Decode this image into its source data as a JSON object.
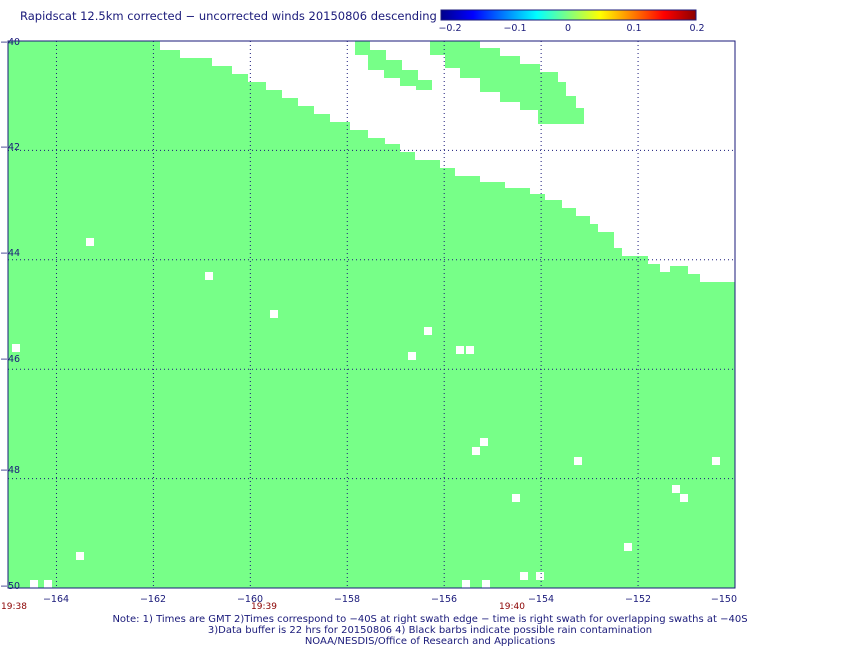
{
  "title": "Rapidscat 12.5km corrected − uncorrected winds 20150806 descending",
  "colorbar": {
    "colors": [
      "#00008b",
      "#0000ff",
      "#0080ff",
      "#00ffff",
      "#80ff80",
      "#ffff00",
      "#ff8000",
      "#ff0000",
      "#8b0000"
    ],
    "tick_labels": [
      "−0.2",
      "−0.1",
      "0",
      "0.1",
      "0.2"
    ],
    "range": [
      -0.2,
      0.2
    ]
  },
  "map": {
    "lon_range": [
      -165,
      -150
    ],
    "lat_range": [
      -40,
      -50
    ],
    "lon_ticks": [
      -164,
      -162,
      -160,
      -158,
      -156,
      -154,
      -152,
      -150
    ],
    "lon_labels": [
      "−164",
      "−162",
      "−160",
      "−158",
      "−156",
      "−154",
      "−152",
      "−150"
    ],
    "lat_ticks": [
      -40,
      -42,
      -44,
      -46,
      -48,
      -50
    ],
    "lat_labels": [
      "−40",
      "−42",
      "−44",
      "−46",
      "−48",
      "−50"
    ],
    "times": [
      "19:38",
      "19:39",
      "19:40"
    ],
    "data_color": "#77ff88",
    "grid_color": "#1a1a7a"
  },
  "notes": [
    "Note: 1) Times are GMT 2)Times correspond to −40S at right swath edge − time is right swath for overlapping swaths at −40S",
    "3)Data buffer is 22 hrs for 20150806 4) Black barbs indicate possible rain contamination",
    "NOAA/NESDIS/Office of Research and Applications"
  ]
}
